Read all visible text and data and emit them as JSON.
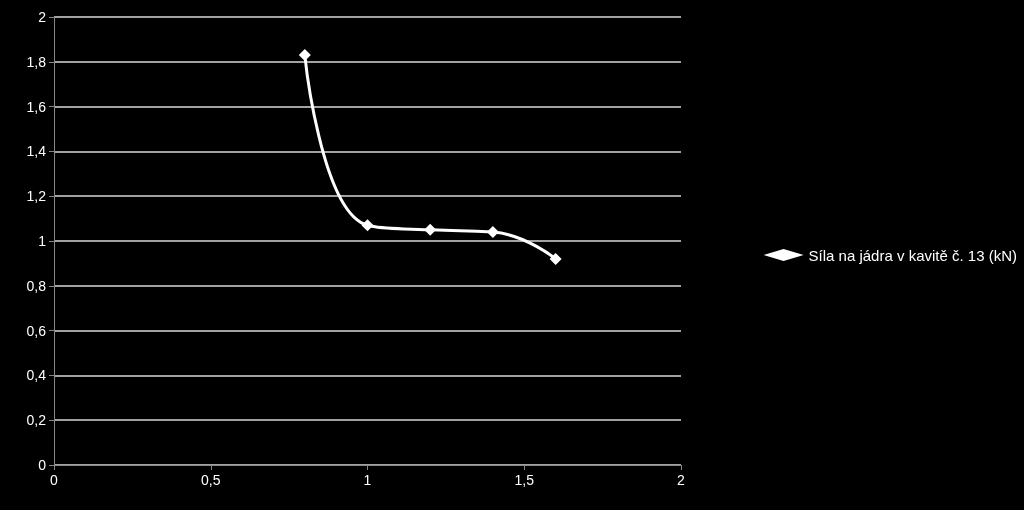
{
  "chart_data": {
    "type": "line",
    "x": [
      0.8,
      1.0,
      1.2,
      1.4,
      1.6
    ],
    "series": [
      {
        "name": "Síla na jádra v kavitě č. 13 (kN)",
        "color": "#ffffff",
        "values": [
          1.83,
          1.07,
          1.05,
          1.04,
          0.92
        ]
      }
    ],
    "xlim": [
      0,
      2
    ],
    "xticks": [
      0,
      {
        "value": 0.5,
        "label": "0,5"
      },
      1,
      {
        "value": 1.5,
        "label": "1,5"
      },
      2
    ],
    "ylim": [
      0,
      2
    ],
    "yticks": [
      0,
      {
        "value": 0.2,
        "label": "0,2"
      },
      {
        "value": 0.4,
        "label": "0,4"
      },
      {
        "value": 0.6,
        "label": "0,6"
      },
      {
        "value": 0.8,
        "label": "0,8"
      },
      1,
      {
        "value": 1.2,
        "label": "1,2"
      },
      {
        "value": 1.4,
        "label": "1,4"
      },
      {
        "value": 1.6,
        "label": "1,6"
      },
      {
        "value": 1.8,
        "label": "1,8"
      },
      2
    ],
    "grid": "y",
    "legend": "right",
    "marker": "diamond",
    "line_style": "solid"
  }
}
